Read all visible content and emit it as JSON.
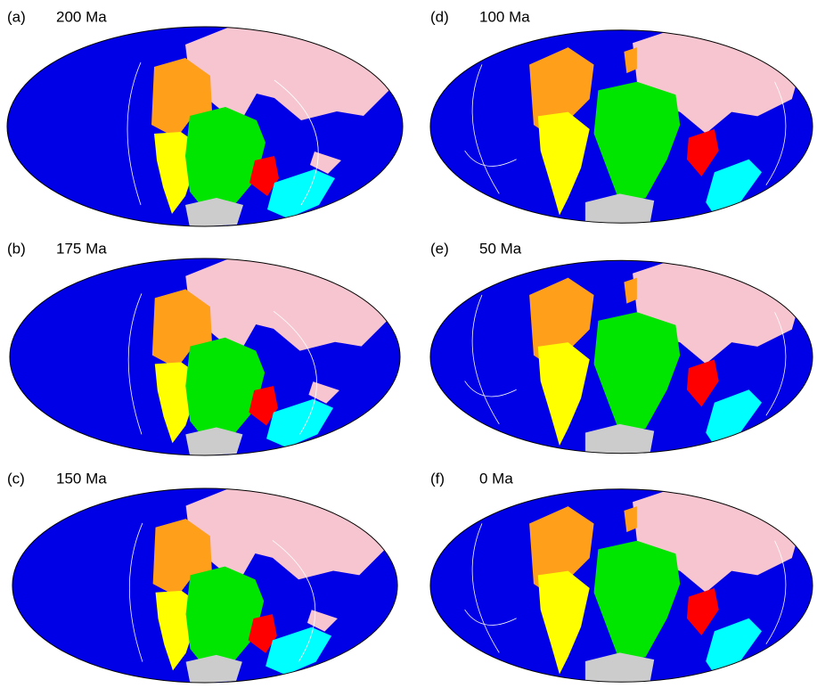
{
  "panels": [
    {
      "label": "(a)",
      "age": "200 Ma"
    },
    {
      "label": "(b)",
      "age": "175 Ma"
    },
    {
      "label": "(c)",
      "age": "150 Ma"
    },
    {
      "label": "(d)",
      "age": "100 Ma"
    },
    {
      "label": "(e)",
      "age": "50 Ma"
    },
    {
      "label": "(f)",
      "age": "0 Ma"
    }
  ]
}
